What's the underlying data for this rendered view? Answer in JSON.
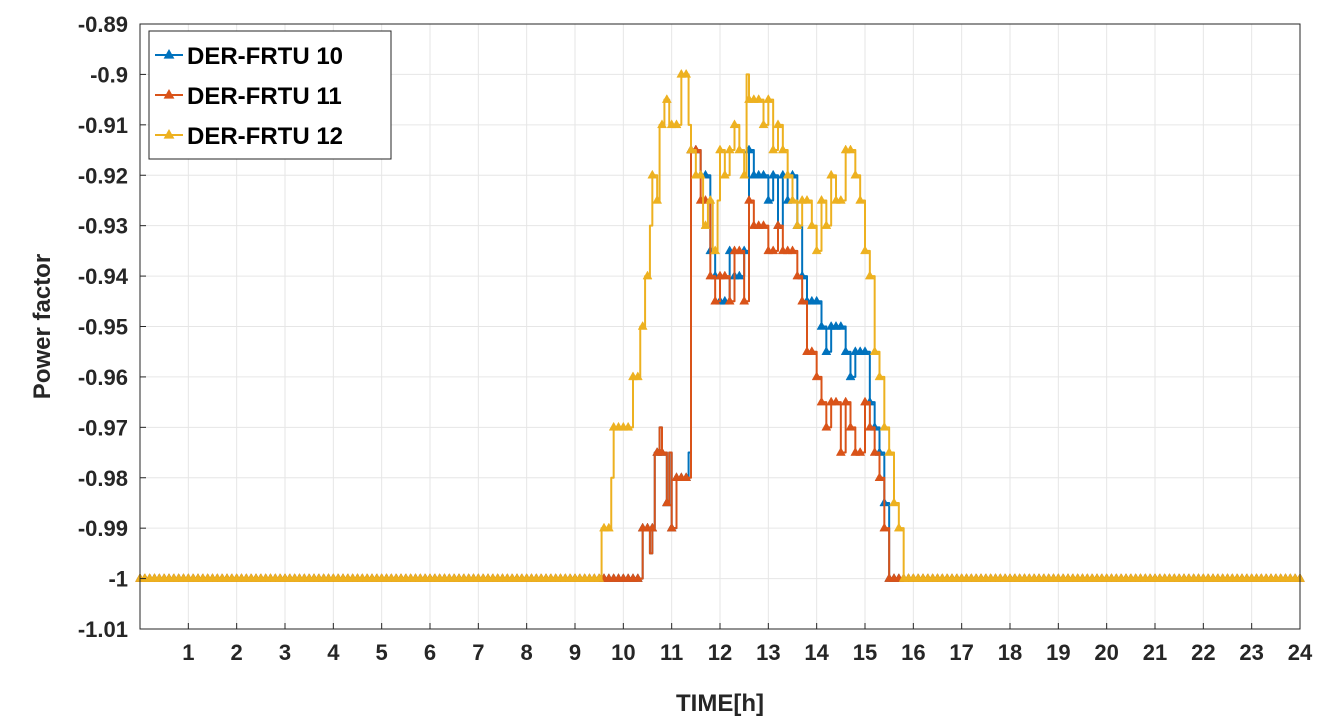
{
  "chart_data": {
    "type": "line",
    "title": "",
    "xlabel": "TIME[h]",
    "ylabel": "Power factor",
    "xlim": [
      0,
      24
    ],
    "ylim": [
      -1.01,
      -0.89
    ],
    "xticks": [
      1,
      2,
      3,
      4,
      5,
      6,
      7,
      8,
      9,
      10,
      11,
      12,
      13,
      14,
      15,
      16,
      17,
      18,
      19,
      20,
      21,
      22,
      23,
      24
    ],
    "yticks": [
      -0.89,
      -0.9,
      -0.91,
      -0.92,
      -0.93,
      -0.94,
      -0.95,
      -0.96,
      -0.97,
      -0.98,
      -0.99,
      -1,
      -1.01
    ],
    "ytick_labels": [
      "-0.89",
      "-0.9",
      "-0.91",
      "-0.92",
      "-0.93",
      "-0.94",
      "-0.95",
      "-0.96",
      "-0.97",
      "-0.98",
      "-0.99",
      "-1",
      "-1.01"
    ],
    "grid": true,
    "legend_position": "top-left",
    "marker": "triangle",
    "series": [
      {
        "name": "DER-FRTU 10",
        "color": "#0072BD",
        "x": [
          0,
          9.5,
          9.6,
          10.35,
          10.4,
          10.55,
          10.6,
          10.65,
          10.75,
          10.8,
          10.9,
          10.95,
          11.0,
          11.1,
          11.35,
          11.4,
          11.6,
          11.8,
          11.9,
          12.0,
          12.2,
          12.3,
          12.5,
          12.6,
          12.7,
          12.9,
          13.0,
          13.1,
          13.2,
          13.3,
          13.4,
          13.5,
          13.6,
          13.7,
          13.8,
          14.0,
          14.1,
          14.2,
          14.3,
          14.5,
          14.6,
          14.7,
          14.8,
          15.0,
          15.1,
          15.2,
          15.3,
          15.4,
          15.5,
          15.9,
          16,
          24
        ],
        "y": [
          -1,
          -1,
          -1,
          -1,
          -0.99,
          -0.995,
          -0.99,
          -0.975,
          -0.97,
          -0.975,
          -0.985,
          -0.975,
          -0.99,
          -0.98,
          -0.975,
          -0.915,
          -0.92,
          -0.935,
          -0.94,
          -0.945,
          -0.935,
          -0.94,
          -0.935,
          -0.915,
          -0.92,
          -0.92,
          -0.925,
          -0.92,
          -0.93,
          -0.92,
          -0.925,
          -0.92,
          -0.93,
          -0.94,
          -0.945,
          -0.945,
          -0.95,
          -0.955,
          -0.95,
          -0.95,
          -0.955,
          -0.96,
          -0.955,
          -0.955,
          -0.965,
          -0.97,
          -0.975,
          -0.985,
          -1,
          -1,
          -1,
          -1
        ]
      },
      {
        "name": "DER-FRTU 11",
        "color": "#D95319",
        "x": [
          0,
          9.5,
          9.6,
          10.35,
          10.4,
          10.55,
          10.6,
          10.65,
          10.75,
          10.8,
          10.9,
          10.95,
          11.0,
          11.1,
          11.35,
          11.4,
          11.6,
          11.8,
          11.9,
          12.0,
          12.2,
          12.3,
          12.5,
          12.6,
          12.7,
          12.9,
          13.0,
          13.2,
          13.3,
          13.5,
          13.6,
          13.7,
          13.8,
          14.0,
          14.1,
          14.2,
          14.3,
          14.5,
          14.6,
          14.7,
          14.8,
          15.0,
          15.1,
          15.2,
          15.3,
          15.4,
          15.5,
          15.9,
          16,
          24
        ],
        "y": [
          -1,
          -1,
          -1,
          -1,
          -0.99,
          -0.995,
          -0.99,
          -0.975,
          -0.97,
          -0.975,
          -0.985,
          -0.975,
          -0.99,
          -0.98,
          -0.98,
          -0.915,
          -0.925,
          -0.94,
          -0.945,
          -0.94,
          -0.945,
          -0.935,
          -0.945,
          -0.925,
          -0.93,
          -0.93,
          -0.935,
          -0.93,
          -0.935,
          -0.935,
          -0.94,
          -0.945,
          -0.955,
          -0.96,
          -0.965,
          -0.97,
          -0.965,
          -0.975,
          -0.965,
          -0.97,
          -0.975,
          -0.965,
          -0.97,
          -0.975,
          -0.98,
          -0.99,
          -1,
          -1,
          -1,
          -1
        ]
      },
      {
        "name": "DER-FRTU 12",
        "color": "#EDB120",
        "x": [
          0,
          9.5,
          9.55,
          9.75,
          9.8,
          10.1,
          10.2,
          10.35,
          10.45,
          10.55,
          10.6,
          10.7,
          10.75,
          10.85,
          10.95,
          11.1,
          11.2,
          11.35,
          11.4,
          11.5,
          11.65,
          11.75,
          11.85,
          11.95,
          12.0,
          12.1,
          12.2,
          12.3,
          12.4,
          12.5,
          12.55,
          12.6,
          12.75,
          12.9,
          13.0,
          13.1,
          13.2,
          13.3,
          13.4,
          13.5,
          13.6,
          13.7,
          13.8,
          13.9,
          14.0,
          14.1,
          14.2,
          14.3,
          14.4,
          14.5,
          14.6,
          14.7,
          14.8,
          14.9,
          15.0,
          15.1,
          15.2,
          15.3,
          15.4,
          15.5,
          15.6,
          15.7,
          15.8,
          15.9,
          16,
          24
        ],
        "y": [
          -1,
          -1,
          -0.99,
          -0.98,
          -0.97,
          -0.97,
          -0.96,
          -0.95,
          -0.94,
          -0.93,
          -0.92,
          -0.925,
          -0.91,
          -0.905,
          -0.91,
          -0.91,
          -0.9,
          -0.91,
          -0.915,
          -0.92,
          -0.93,
          -0.925,
          -0.935,
          -0.925,
          -0.915,
          -0.92,
          -0.915,
          -0.91,
          -0.915,
          -0.92,
          -0.9,
          -0.905,
          -0.905,
          -0.91,
          -0.905,
          -0.915,
          -0.91,
          -0.915,
          -0.92,
          -0.925,
          -0.93,
          -0.925,
          -0.925,
          -0.93,
          -0.935,
          -0.925,
          -0.93,
          -0.92,
          -0.925,
          -0.925,
          -0.915,
          -0.915,
          -0.92,
          -0.925,
          -0.935,
          -0.94,
          -0.955,
          -0.96,
          -0.97,
          -0.975,
          -0.985,
          -0.99,
          -1,
          -1,
          -1,
          -1
        ]
      }
    ]
  }
}
